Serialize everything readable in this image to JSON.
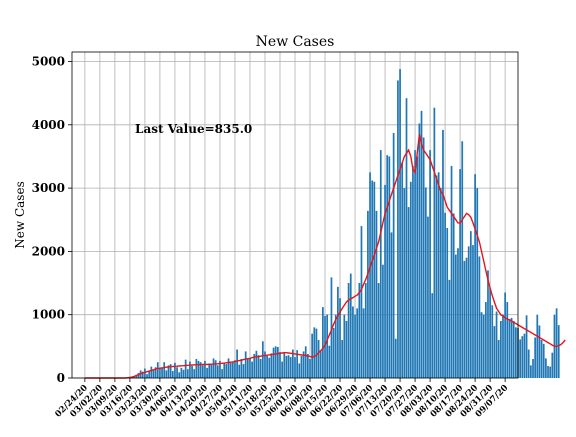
{
  "chart_data": {
    "type": "bar",
    "title": "New Cases",
    "xlabel": "",
    "ylabel": "New Cases",
    "ylim": [
      0,
      5150
    ],
    "yticks": [
      0,
      1000,
      2000,
      3000,
      4000,
      5000
    ],
    "grid": true,
    "annotation": "Last Value=835.0",
    "colors": {
      "bars": "#1f77b4",
      "moving_average": "#e8141c"
    },
    "x_start": "2020-02-24",
    "tick_labels": [
      "02/24/20",
      "03/02/20",
      "03/09/20",
      "03/16/20",
      "03/23/20",
      "03/30/20",
      "04/06/20",
      "04/13/20",
      "04/20/20",
      "04/27/20",
      "05/04/20",
      "05/11/20",
      "05/18/20",
      "05/25/20",
      "06/01/20",
      "06/08/20",
      "06/15/20",
      "06/22/20",
      "06/29/20",
      "07/06/20",
      "07/13/20",
      "07/20/20",
      "07/27/20",
      "08/03/20",
      "08/10/20",
      "08/17/20",
      "08/24/20",
      "08/31/20",
      "09/07/20"
    ],
    "series": [
      {
        "name": "New Cases",
        "kind": "bar",
        "values": [
          0,
          0,
          0,
          0,
          0,
          0,
          0,
          0,
          0,
          0,
          0,
          0,
          0,
          0,
          0,
          0,
          0,
          0,
          0,
          0,
          5,
          10,
          20,
          30,
          50,
          80,
          120,
          100,
          150,
          60,
          110,
          180,
          130,
          170,
          250,
          150,
          160,
          250,
          120,
          200,
          220,
          110,
          240,
          170,
          90,
          160,
          130,
          290,
          140,
          260,
          190,
          140,
          300,
          270,
          250,
          200,
          270,
          160,
          230,
          220,
          310,
          280,
          200,
          270,
          140,
          240,
          220,
          310,
          240,
          260,
          280,
          450,
          210,
          300,
          220,
          420,
          300,
          320,
          260,
          380,
          430,
          360,
          300,
          580,
          420,
          350,
          320,
          390,
          480,
          500,
          490,
          410,
          260,
          400,
          350,
          360,
          330,
          450,
          330,
          440,
          230,
          350,
          420,
          500,
          380,
          300,
          700,
          800,
          780,
          600,
          440,
          1120,
          980,
          1000,
          510,
          1590,
          790,
          1000,
          1440,
          1260,
          600,
          1000,
          900,
          1500,
          1650,
          1130,
          1000,
          1100,
          1500,
          2400,
          1100,
          1500,
          2640,
          3250,
          3120,
          3100,
          2640,
          1500,
          3600,
          1790,
          3050,
          3520,
          3500,
          2300,
          3870,
          620,
          4700,
          4880,
          3400,
          3000,
          4420,
          2700,
          3100,
          3350,
          3600,
          3500,
          4020,
          4220,
          3800,
          3010,
          2550,
          3600,
          1340,
          4270,
          3200,
          3250,
          3000,
          3920,
          2610,
          2370,
          1550,
          3350,
          2600,
          1950,
          2050,
          3300,
          3740,
          1850,
          1900,
          2080,
          2320,
          2100,
          3220,
          3000,
          1920,
          1040,
          1000,
          1200,
          1700,
          1420,
          1150,
          820,
          1050,
          600,
          900,
          1000,
          1350,
          1200,
          930,
          950,
          900,
          800,
          790,
          610,
          660,
          700,
          990,
          450,
          200,
          300,
          640,
          1000,
          830,
          600,
          540,
          310,
          190,
          180,
          400,
          1000,
          1100,
          835
        ]
      },
      {
        "name": "Moving Average",
        "kind": "line",
        "values": [
          0,
          0,
          0,
          0,
          0,
          0,
          0,
          0,
          0,
          0,
          0,
          0,
          0,
          0,
          0,
          0,
          0,
          0,
          0,
          0,
          5,
          10,
          15,
          25,
          40,
          50,
          70,
          80,
          90,
          100,
          110,
          120,
          130,
          140,
          150,
          155,
          160,
          165,
          170,
          175,
          180,
          182,
          185,
          187,
          190,
          192,
          195,
          197,
          200,
          202,
          205,
          207,
          210,
          210,
          212,
          213,
          215,
          215,
          217,
          218,
          220,
          222,
          225,
          230,
          232,
          235,
          240,
          245,
          250,
          255,
          260,
          270,
          275,
          280,
          290,
          300,
          305,
          310,
          320,
          330,
          335,
          340,
          345,
          350,
          355,
          360,
          365,
          370,
          375,
          380,
          385,
          390,
          395,
          400,
          400,
          395,
          390,
          385,
          380,
          375,
          370,
          365,
          360,
          355,
          350,
          340,
          330,
          340,
          360,
          400,
          430,
          470,
          520,
          600,
          680,
          760,
          850,
          920,
          980,
          1040,
          1100,
          1150,
          1200,
          1230,
          1250,
          1270,
          1290,
          1310,
          1350,
          1400,
          1480,
          1560,
          1650,
          1750,
          1850,
          1950,
          2050,
          2150,
          2300,
          2450,
          2600,
          2700,
          2800,
          2900,
          3000,
          3100,
          3200,
          3300,
          3400,
          3500,
          3550,
          3600,
          3500,
          3300,
          3250,
          3550,
          3850,
          3700,
          3600,
          3550,
          3500,
          3450,
          3350,
          3250,
          3150,
          3050,
          2950,
          2900,
          2800,
          2700,
          2650,
          2600,
          2550,
          2500,
          2450,
          2450,
          2500,
          2550,
          2600,
          2580,
          2540,
          2450,
          2350,
          2250,
          2150,
          2000,
          1850,
          1700,
          1550,
          1420,
          1300,
          1200,
          1100,
          1050,
          1000,
          980,
          950,
          930,
          920,
          900,
          880,
          860,
          840,
          820,
          800,
          780,
          760,
          740,
          720,
          700,
          680,
          660,
          640,
          620,
          600,
          580,
          560,
          540,
          520,
          500,
          500,
          510,
          530,
          560,
          600
        ]
      }
    ]
  }
}
